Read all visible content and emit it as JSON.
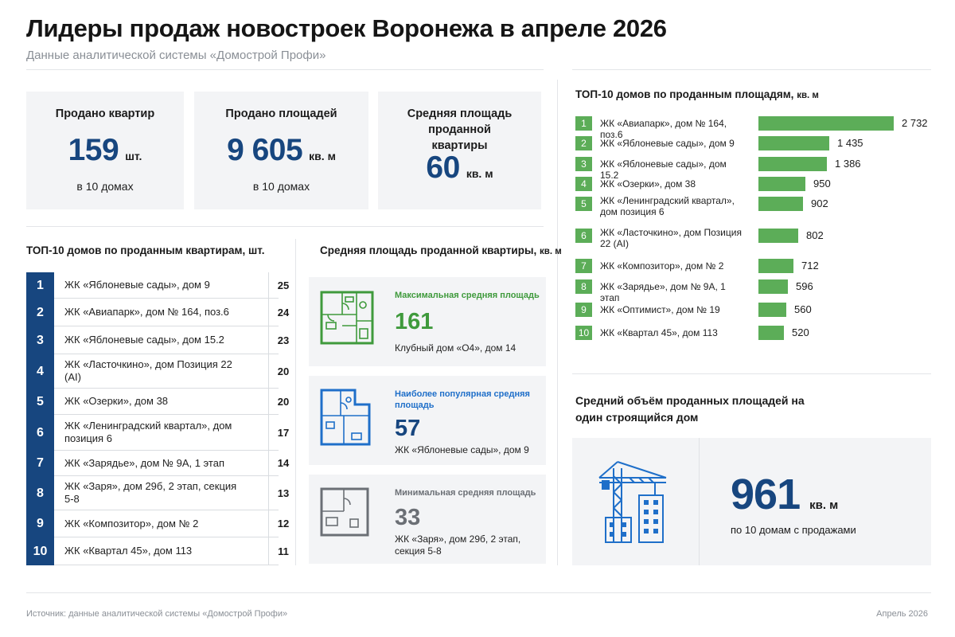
{
  "title": "Лидеры продаж новостроек Воронежа в апреле 2026",
  "subtitle": "Данные аналитической системы «Домострой Профи»",
  "stats": [
    {
      "title": "Продано квартир",
      "value": "159",
      "unit": "шт.",
      "sub": "в 10 домах"
    },
    {
      "title": "Продано площадей",
      "value": "9 605",
      "unit": "кв. м",
      "sub": "в 10 домах"
    },
    {
      "title": "Средняя площадь проданной квартиры",
      "value": "60",
      "unit": "кв. м"
    }
  ],
  "top_apartments": {
    "title": "ТОП-10 домов по проданным квартирам,",
    "unit": "шт.",
    "rows": [
      {
        "num": "1",
        "name": "ЖК «Яблоневые сады», дом 9",
        "value": "25"
      },
      {
        "num": "2",
        "name": "ЖК «Авиапарк», дом № 164, поз.6",
        "value": "24"
      },
      {
        "num": "3",
        "name": "ЖК «Яблоневые сады», дом 15.2",
        "value": "23"
      },
      {
        "num": "4",
        "name": "ЖК «Ласточкино», дом Позиция 22 (AI)",
        "value": "20"
      },
      {
        "num": "5",
        "name": "ЖК «Озерки», дом 38",
        "value": "20"
      },
      {
        "num": "6",
        "name": "ЖК «Ленинградский квартал», дом позиция 6",
        "value": "17"
      },
      {
        "num": "7",
        "name": "ЖК «Зарядье», дом № 9А, 1 этап",
        "value": "14"
      },
      {
        "num": "8",
        "name": "ЖК «Заря», дом 29б, 2 этап, секция 5-8",
        "value": "13"
      },
      {
        "num": "9",
        "name": "ЖК «Композитор», дом № 2",
        "value": "12"
      },
      {
        "num": "10",
        "name": "ЖК «Квартал 45», дом 113",
        "value": "11"
      }
    ]
  },
  "avg_area": {
    "title": "Средняя площадь проданной квартиры,",
    "unit": "кв. м",
    "cards": [
      {
        "label": "Максимальная средняя площадь",
        "value": "161",
        "desc": "Клубный дом «О4», дом 14",
        "color": "#3f9a3c"
      },
      {
        "label": "Наиболее популярная средняя площадь",
        "value": "57",
        "desc": "ЖК «Яблоневые сады», дом 9",
        "color": "#1f6fc9"
      },
      {
        "label": "Минимальная средняя площадь",
        "value": "33",
        "desc": "ЖК «Заря», дом 29б, 2 этап, секция 5-8",
        "color": "#6b6f75"
      }
    ]
  },
  "chart_data": {
    "type": "bar",
    "orientation": "horizontal",
    "title": "ТОП-10 домов по проданным площадям,",
    "unit": "кв. м",
    "categories": [
      "ЖК «Авиапарк», дом № 164, поз.6",
      "ЖК «Яблоневые сады», дом 9",
      "ЖК «Яблоневые сады», дом 15.2",
      "ЖК «Озерки», дом 38",
      "ЖК «Ленинградский квартал», дом позиция 6",
      "ЖК «Ласточкино», дом Позиция 22 (AI)",
      "ЖК «Композитор», дом № 2",
      "ЖК «Зарядье», дом № 9А, 1 этап",
      "ЖК «Оптимист», дом № 19",
      "ЖК «Квартал 45», дом 113"
    ],
    "ranks": [
      "1",
      "2",
      "3",
      "4",
      "5",
      "6",
      "7",
      "8",
      "9",
      "10"
    ],
    "values": [
      2732,
      1435,
      1386,
      950,
      902,
      802,
      712,
      596,
      560,
      520
    ],
    "value_labels": [
      "2 732",
      "1 435",
      "1 386",
      "950",
      "902",
      "802",
      "712",
      "596",
      "560",
      "520"
    ],
    "bar_color": "#5cad58",
    "grid": false
  },
  "avg_volume": {
    "title": "Средний объём проданных площадей на один строящийся дом",
    "value": "961",
    "unit": "кв. м",
    "sub": "по 10 домам с продажами"
  },
  "footer": {
    "source": "Источник: данные аналитической системы «Домострой Профи»",
    "date": "Апрель 2026"
  },
  "colors": {
    "accent": "#17467f",
    "green": "#5cad58",
    "blue": "#1f6fc9",
    "gray": "#6b6f75"
  }
}
